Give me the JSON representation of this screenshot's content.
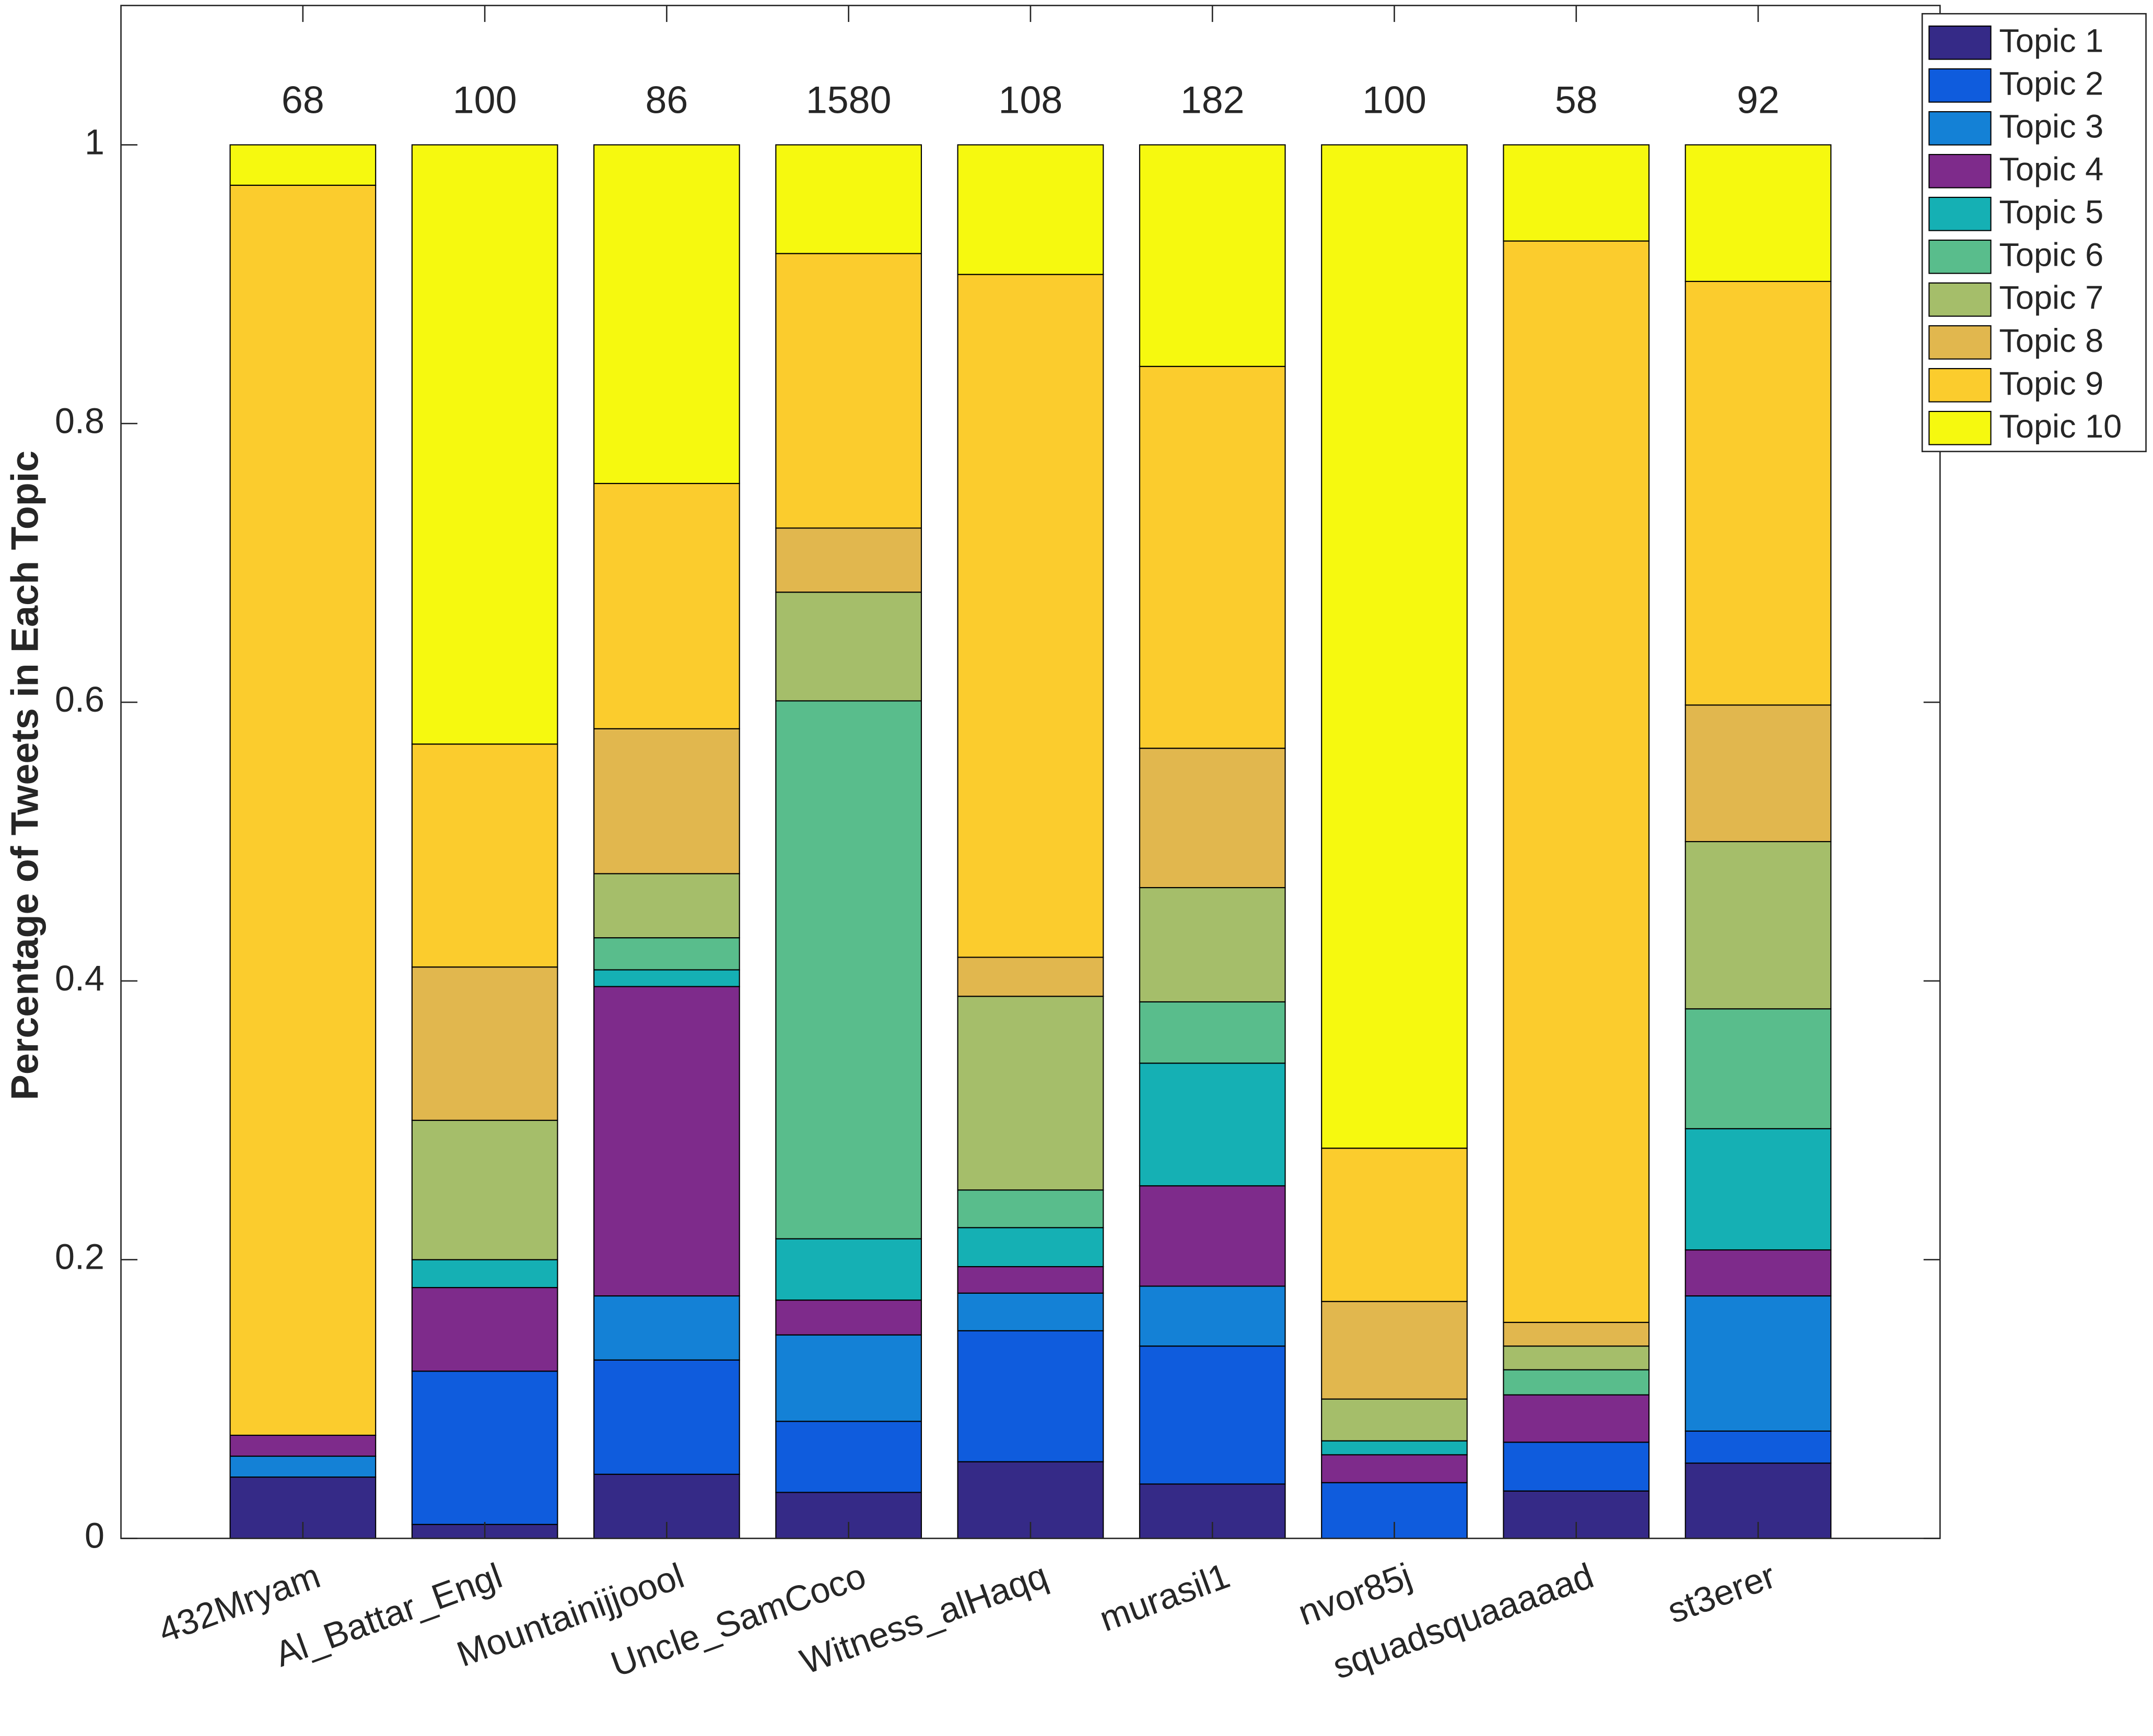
{
  "chart_data": {
    "type": "stacked_bar",
    "ylabel": "Percentage of Tweets in Each Topic",
    "categories": [
      "432Mryam",
      "Al_Battar_Engl",
      "Mountainijjoool",
      "Uncle_SamCoco",
      "Witness_alHaqq",
      "murasil1",
      "nvor85j",
      "squadsquaaaaad",
      "st3erer"
    ],
    "annotations": [
      "68",
      "100",
      "86",
      "1580",
      "108",
      "182",
      "100",
      "58",
      "92"
    ],
    "series": [
      {
        "name": "Topic 1",
        "color": "#352a87",
        "values": [
          0.044,
          0.01,
          0.046,
          0.033,
          0.055,
          0.039,
          0,
          0.034,
          0.054
        ]
      },
      {
        "name": "Topic 2",
        "color": "#0f5cdd",
        "values": [
          0,
          0.11,
          0.082,
          0.051,
          0.094,
          0.099,
          0.04,
          0.035,
          0.023
        ]
      },
      {
        "name": "Topic 3",
        "color": "#1481d6",
        "values": [
          0.015,
          0,
          0.046,
          0.062,
          0.027,
          0.043,
          0,
          0,
          0.097
        ]
      },
      {
        "name": "Topic 4",
        "color": "#7e2b8b",
        "values": [
          0.015,
          0.06,
          0.222,
          0.025,
          0.019,
          0.072,
          0.02,
          0.034,
          0.033
        ]
      },
      {
        "name": "Topic 5",
        "color": "#15b0b4",
        "values": [
          0,
          0.02,
          0.012,
          0.044,
          0.028,
          0.088,
          0.01,
          0,
          0.087
        ]
      },
      {
        "name": "Topic 6",
        "color": "#59bd8c",
        "values": [
          0,
          0,
          0.023,
          0.386,
          0.027,
          0.044,
          0,
          0.018,
          0.086
        ]
      },
      {
        "name": "Topic 7",
        "color": "#a5be6a",
        "values": [
          0,
          0.1,
          0.046,
          0.078,
          0.139,
          0.082,
          0.03,
          0.017,
          0.12
        ]
      },
      {
        "name": "Topic 8",
        "color": "#e1b74e",
        "values": [
          0,
          0.11,
          0.104,
          0.046,
          0.028,
          0.1,
          0.07,
          0.017,
          0.098
        ]
      },
      {
        "name": "Topic 9",
        "color": "#fbcc2d",
        "values": [
          0.897,
          0.16,
          0.176,
          0.197,
          0.49,
          0.274,
          0.11,
          0.776,
          0.304
        ]
      },
      {
        "name": "Topic 10",
        "color": "#f6f90f",
        "values": [
          0.029,
          0.43,
          0.243,
          0.078,
          0.093,
          0.159,
          0.72,
          0.069,
          0.098
        ]
      }
    ],
    "ylim": [
      0,
      1.1
    ],
    "yticks": [
      0,
      0.2,
      0.4,
      0.6,
      0.8,
      1
    ],
    "legend": "upper right outside"
  }
}
